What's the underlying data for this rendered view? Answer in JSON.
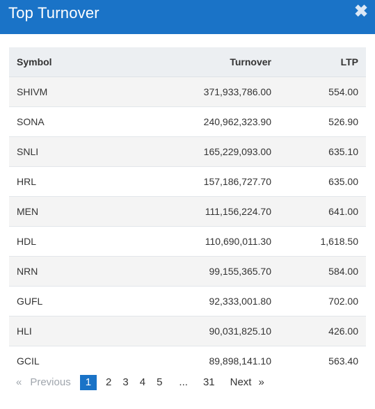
{
  "header": {
    "title": "Top Turnover",
    "close_glyph": "✖"
  },
  "table": {
    "columns": [
      "Symbol",
      "Turnover",
      "LTP"
    ],
    "rows": [
      [
        "SHIVM",
        "371,933,786.00",
        "554.00"
      ],
      [
        "SONA",
        "240,962,323.90",
        "526.90"
      ],
      [
        "SNLI",
        "165,229,093.00",
        "635.10"
      ],
      [
        "HRL",
        "157,186,727.70",
        "635.00"
      ],
      [
        "MEN",
        "111,156,224.70",
        "641.00"
      ],
      [
        "HDL",
        "110,690,011.30",
        "1,618.50"
      ],
      [
        "NRN",
        "99,155,365.70",
        "584.00"
      ],
      [
        "GUFL",
        "92,333,001.80",
        "702.00"
      ],
      [
        "HLI",
        "90,031,825.10",
        "426.00"
      ],
      [
        "GCIL",
        "89,898,141.10",
        "563.40"
      ]
    ]
  },
  "pagination": {
    "prev_arrow": "«",
    "prev_label": "Previous",
    "pages": [
      "1",
      "2",
      "3",
      "4",
      "5",
      "...",
      "31"
    ],
    "active_page": "1",
    "next_label": "Next",
    "next_arrow": "»"
  },
  "colors": {
    "accent": "#1a73c7",
    "header_row": "#eceff2",
    "stripe": "#f4f4f4",
    "disabled": "#a0a6ad"
  }
}
